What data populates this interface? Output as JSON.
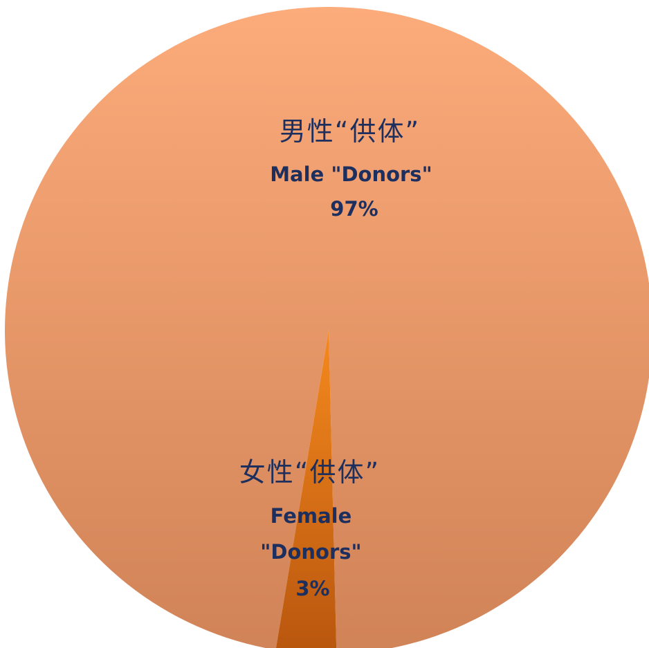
{
  "chart_data": {
    "type": "pie",
    "title": "",
    "slices": [
      {
        "label_cn": "男性“供体”",
        "label_en_lines": [
          "Male \"Donors\""
        ],
        "value_label": "97%",
        "value": 97,
        "color_top": "#fcab7a",
        "color_bottom": "#d08357"
      },
      {
        "label_cn": "女性“供体”",
        "label_en_lines": [
          "Female",
          "\"Donors\""
        ],
        "value_label": "3%",
        "value": 3,
        "color_top": "#f5891e",
        "color_bottom": "#b8560e"
      }
    ],
    "label_color": "#1c2f5e",
    "legend": "none"
  }
}
